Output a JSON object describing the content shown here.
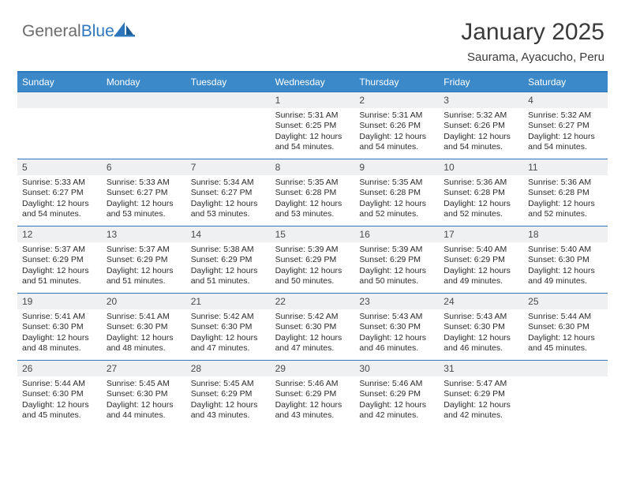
{
  "brand": {
    "general": "General",
    "blue": "Blue"
  },
  "colors": {
    "accent": "#3b89c9",
    "rule": "#2f77bc",
    "daynum_bg": "#eef0f1",
    "text": "#262626",
    "bg": "#ffffff"
  },
  "typography": {
    "body_pt": 10.5,
    "title_pt": 30,
    "dow_pt": 12
  },
  "title": "January 2025",
  "location": "Saurama, Ayacucho, Peru",
  "days_of_week": [
    "Sunday",
    "Monday",
    "Tuesday",
    "Wednesday",
    "Thursday",
    "Friday",
    "Saturday"
  ],
  "layout": {
    "first_weekday_index": 3,
    "days_in_month": 31,
    "weeks": 5
  },
  "days": [
    {
      "n": 1,
      "sunrise": "5:31 AM",
      "sunset": "6:25 PM",
      "daylight": "12 hours and 54 minutes."
    },
    {
      "n": 2,
      "sunrise": "5:31 AM",
      "sunset": "6:26 PM",
      "daylight": "12 hours and 54 minutes."
    },
    {
      "n": 3,
      "sunrise": "5:32 AM",
      "sunset": "6:26 PM",
      "daylight": "12 hours and 54 minutes."
    },
    {
      "n": 4,
      "sunrise": "5:32 AM",
      "sunset": "6:27 PM",
      "daylight": "12 hours and 54 minutes."
    },
    {
      "n": 5,
      "sunrise": "5:33 AM",
      "sunset": "6:27 PM",
      "daylight": "12 hours and 54 minutes."
    },
    {
      "n": 6,
      "sunrise": "5:33 AM",
      "sunset": "6:27 PM",
      "daylight": "12 hours and 53 minutes."
    },
    {
      "n": 7,
      "sunrise": "5:34 AM",
      "sunset": "6:27 PM",
      "daylight": "12 hours and 53 minutes."
    },
    {
      "n": 8,
      "sunrise": "5:35 AM",
      "sunset": "6:28 PM",
      "daylight": "12 hours and 53 minutes."
    },
    {
      "n": 9,
      "sunrise": "5:35 AM",
      "sunset": "6:28 PM",
      "daylight": "12 hours and 52 minutes."
    },
    {
      "n": 10,
      "sunrise": "5:36 AM",
      "sunset": "6:28 PM",
      "daylight": "12 hours and 52 minutes."
    },
    {
      "n": 11,
      "sunrise": "5:36 AM",
      "sunset": "6:28 PM",
      "daylight": "12 hours and 52 minutes."
    },
    {
      "n": 12,
      "sunrise": "5:37 AM",
      "sunset": "6:29 PM",
      "daylight": "12 hours and 51 minutes."
    },
    {
      "n": 13,
      "sunrise": "5:37 AM",
      "sunset": "6:29 PM",
      "daylight": "12 hours and 51 minutes."
    },
    {
      "n": 14,
      "sunrise": "5:38 AM",
      "sunset": "6:29 PM",
      "daylight": "12 hours and 51 minutes."
    },
    {
      "n": 15,
      "sunrise": "5:39 AM",
      "sunset": "6:29 PM",
      "daylight": "12 hours and 50 minutes."
    },
    {
      "n": 16,
      "sunrise": "5:39 AM",
      "sunset": "6:29 PM",
      "daylight": "12 hours and 50 minutes."
    },
    {
      "n": 17,
      "sunrise": "5:40 AM",
      "sunset": "6:29 PM",
      "daylight": "12 hours and 49 minutes."
    },
    {
      "n": 18,
      "sunrise": "5:40 AM",
      "sunset": "6:30 PM",
      "daylight": "12 hours and 49 minutes."
    },
    {
      "n": 19,
      "sunrise": "5:41 AM",
      "sunset": "6:30 PM",
      "daylight": "12 hours and 48 minutes."
    },
    {
      "n": 20,
      "sunrise": "5:41 AM",
      "sunset": "6:30 PM",
      "daylight": "12 hours and 48 minutes."
    },
    {
      "n": 21,
      "sunrise": "5:42 AM",
      "sunset": "6:30 PM",
      "daylight": "12 hours and 47 minutes."
    },
    {
      "n": 22,
      "sunrise": "5:42 AM",
      "sunset": "6:30 PM",
      "daylight": "12 hours and 47 minutes."
    },
    {
      "n": 23,
      "sunrise": "5:43 AM",
      "sunset": "6:30 PM",
      "daylight": "12 hours and 46 minutes."
    },
    {
      "n": 24,
      "sunrise": "5:43 AM",
      "sunset": "6:30 PM",
      "daylight": "12 hours and 46 minutes."
    },
    {
      "n": 25,
      "sunrise": "5:44 AM",
      "sunset": "6:30 PM",
      "daylight": "12 hours and 45 minutes."
    },
    {
      "n": 26,
      "sunrise": "5:44 AM",
      "sunset": "6:30 PM",
      "daylight": "12 hours and 45 minutes."
    },
    {
      "n": 27,
      "sunrise": "5:45 AM",
      "sunset": "6:30 PM",
      "daylight": "12 hours and 44 minutes."
    },
    {
      "n": 28,
      "sunrise": "5:45 AM",
      "sunset": "6:29 PM",
      "daylight": "12 hours and 43 minutes."
    },
    {
      "n": 29,
      "sunrise": "5:46 AM",
      "sunset": "6:29 PM",
      "daylight": "12 hours and 43 minutes."
    },
    {
      "n": 30,
      "sunrise": "5:46 AM",
      "sunset": "6:29 PM",
      "daylight": "12 hours and 42 minutes."
    },
    {
      "n": 31,
      "sunrise": "5:47 AM",
      "sunset": "6:29 PM",
      "daylight": "12 hours and 42 minutes."
    }
  ],
  "labels": {
    "sunrise": "Sunrise:",
    "sunset": "Sunset:",
    "daylight": "Daylight:"
  }
}
